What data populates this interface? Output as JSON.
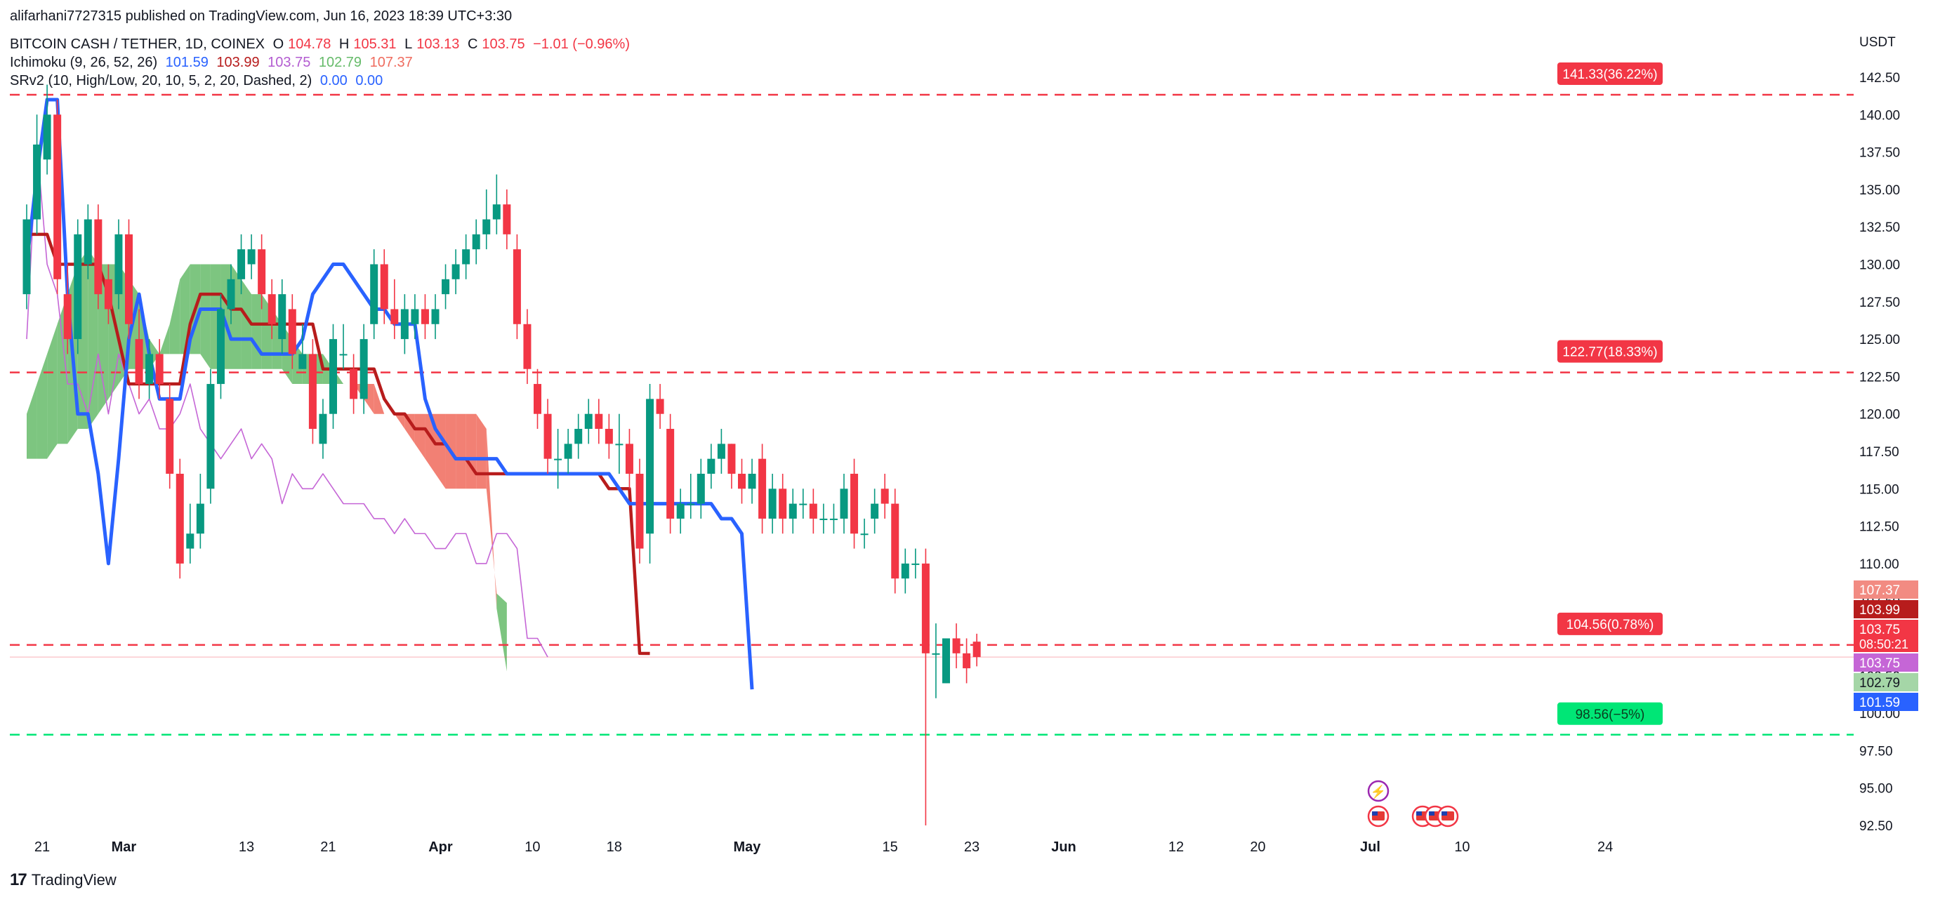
{
  "header": {
    "published": "alifarhani7727315 published on TradingView.com, Jun 16, 2023 18:39 UTC+3:30",
    "symbol": "BITCOIN CASH / TETHER, 1D, COINEX",
    "ohlc": {
      "o_label": "O",
      "o": "104.78",
      "h_label": "H",
      "h": "105.31",
      "l_label": "L",
      "l": "103.13",
      "c_label": "C",
      "c": "103.75",
      "change": "−1.01 (−0.96%)"
    },
    "ichimoku": {
      "label": "Ichimoku (9, 26, 52, 26)",
      "v1": "101.59",
      "v2": "103.99",
      "v3": "103.75",
      "v4": "102.79",
      "v5": "107.37"
    },
    "srv2": {
      "label": "SRv2 (10, High/Low, 20, 10, 5, 2, 20, Dashed, 2)",
      "v1": "0.00",
      "v2": "0.00"
    }
  },
  "footer": {
    "brand": "TradingView"
  },
  "colors": {
    "up": "#089981",
    "down": "#f23645",
    "tenkan": "#2962ff",
    "kijun": "#b71c1c",
    "chikou": "#c566d6",
    "cloud_bull": "#66bb6a",
    "cloud_bear": "#f06a5c",
    "sr_red": "#f23645",
    "sr_green": "#00e676"
  },
  "chart_data": {
    "type": "candlestick",
    "currency": "USDT",
    "ylim": [
      92.5,
      142.5
    ],
    "y_ticks": [
      "142.50",
      "140.00",
      "137.50",
      "135.00",
      "132.50",
      "130.00",
      "127.50",
      "125.00",
      "122.50",
      "120.00",
      "117.50",
      "115.00",
      "112.50",
      "110.00",
      "107.50",
      "105.00",
      "102.50",
      "100.00",
      "97.50",
      "95.00",
      "92.50"
    ],
    "x_ticks": [
      {
        "label": "21",
        "date": "2023-02-21"
      },
      {
        "label": "Mar",
        "date": "2023-03-01"
      },
      {
        "label": "13",
        "date": "2023-03-13"
      },
      {
        "label": "21",
        "date": "2023-03-21"
      },
      {
        "label": "Apr",
        "date": "2023-04-01"
      },
      {
        "label": "10",
        "date": "2023-04-10"
      },
      {
        "label": "18",
        "date": "2023-04-18"
      },
      {
        "label": "May",
        "date": "2023-05-01"
      },
      {
        "label": "15",
        "date": "2023-05-15"
      },
      {
        "label": "23",
        "date": "2023-05-23"
      },
      {
        "label": "Jun",
        "date": "2023-06-01"
      },
      {
        "label": "12",
        "date": "2023-06-12"
      },
      {
        "label": "20",
        "date": "2023-06-20"
      },
      {
        "label": "Jul",
        "date": "2023-07-01"
      },
      {
        "label": "10",
        "date": "2023-07-10"
      },
      {
        "label": "24",
        "date": "2023-07-24"
      }
    ],
    "candles": {
      "start_date": "2023-02-21",
      "close": [
        133,
        138,
        140,
        129,
        125,
        132,
        133,
        128,
        127,
        132,
        126,
        122,
        124,
        122,
        116,
        110,
        112,
        114,
        122,
        127,
        129,
        131,
        131,
        128,
        126,
        128,
        124,
        124,
        119,
        120,
        125,
        124,
        121,
        125,
        130,
        127,
        126,
        127,
        127,
        126,
        127,
        129,
        130,
        131,
        132,
        133,
        134,
        132,
        126,
        123,
        120,
        117,
        117,
        118,
        119,
        120,
        119,
        118,
        118,
        116,
        111,
        121,
        120,
        113,
        114,
        114,
        116,
        117,
        118,
        116,
        115,
        116,
        113,
        115,
        113,
        114,
        114,
        113,
        113,
        113,
        115,
        112,
        112,
        114,
        114,
        109,
        110,
        110,
        104,
        104,
        105,
        104,
        103,
        103.75
      ],
      "open": [
        128,
        133,
        137,
        140,
        128,
        125,
        130,
        133,
        129,
        128,
        132,
        125,
        122,
        124,
        121,
        116,
        111,
        112,
        115,
        122,
        127,
        129,
        130,
        131,
        128,
        125,
        127,
        123,
        124,
        118,
        120,
        124,
        123,
        121,
        126,
        130,
        127,
        125,
        126,
        127,
        126,
        128,
        129,
        130,
        131,
        132,
        133,
        134,
        131,
        126,
        122,
        120,
        117,
        117,
        118,
        119,
        120,
        119,
        118,
        118,
        116,
        112,
        121,
        119,
        113,
        114,
        114,
        116,
        117,
        118,
        116,
        115,
        117,
        113,
        115,
        113,
        114,
        114,
        113,
        113,
        113,
        116,
        112,
        113,
        115,
        114,
        109,
        110,
        110,
        104,
        102,
        105,
        104,
        104.78
      ],
      "high": [
        134,
        140,
        142,
        141,
        130,
        133,
        134,
        134,
        130,
        133,
        133,
        127,
        125,
        125,
        122,
        117,
        114,
        116,
        123,
        128,
        130,
        132,
        132,
        132,
        129,
        129,
        128,
        126,
        125,
        121,
        126,
        126,
        124,
        126,
        131,
        131,
        129,
        128,
        128,
        128,
        128,
        130,
        131,
        132,
        133,
        135,
        136,
        135,
        132,
        127,
        123,
        121,
        119,
        119,
        120,
        121,
        121,
        120,
        120,
        119,
        117,
        122,
        122,
        120,
        115,
        116,
        117,
        118,
        119,
        118,
        117,
        117,
        118,
        116,
        116,
        115,
        115,
        115,
        114,
        114,
        116,
        117,
        113,
        115,
        116,
        115,
        111,
        111,
        111,
        106,
        105,
        106,
        105,
        105.31
      ],
      "low": [
        127,
        132,
        136,
        128,
        124,
        124,
        129,
        127,
        126,
        127,
        125,
        121,
        121,
        121,
        115,
        109,
        110,
        111,
        114,
        121,
        126,
        128,
        129,
        127,
        125,
        124,
        123,
        123,
        118,
        117,
        119,
        123,
        120,
        120,
        125,
        126,
        125,
        124,
        125,
        125,
        125,
        127,
        128,
        129,
        130,
        131,
        132,
        131,
        125,
        122,
        119,
        116,
        115,
        116,
        117,
        118,
        118,
        117,
        116,
        115,
        110,
        110,
        119,
        112,
        112,
        113,
        113,
        115,
        116,
        115,
        114,
        114,
        112,
        112,
        112,
        112,
        113,
        112,
        112,
        112,
        112,
        111,
        111,
        112,
        113,
        108,
        108,
        109,
        92.5,
        101,
        102,
        103,
        102,
        103.13
      ]
    },
    "tenkan": [
      130,
      136,
      141,
      141,
      128,
      120,
      120,
      116,
      110,
      117,
      125,
      128,
      124,
      121,
      121,
      121,
      125,
      127,
      127,
      127,
      125,
      125,
      125,
      124,
      124,
      124,
      124,
      125,
      128,
      129,
      130,
      130,
      129,
      128,
      127,
      127,
      126,
      126,
      126,
      121,
      119,
      118,
      117,
      117,
      117,
      117,
      117,
      116,
      116,
      116,
      116,
      116,
      116,
      116,
      116,
      116,
      116,
      116,
      115,
      114,
      114,
      114,
      114,
      114,
      114,
      114,
      114,
      114,
      113,
      113,
      112,
      101.59
    ],
    "kijun": [
      132,
      132,
      132,
      130,
      130,
      130,
      130,
      130,
      128,
      125,
      122,
      122,
      122,
      122,
      122,
      122,
      126,
      128,
      128,
      128,
      127,
      127,
      126,
      126,
      126,
      126,
      126,
      126,
      126,
      123,
      123,
      123,
      123,
      123,
      123,
      121,
      120,
      120,
      119,
      119,
      118,
      118,
      117,
      117,
      116,
      116,
      116,
      116,
      116,
      116,
      116,
      116,
      116,
      116,
      116,
      116,
      116,
      115,
      115,
      115,
      104,
      103.99
    ],
    "senkou_a": [
      120,
      122,
      124,
      126,
      128,
      130,
      131,
      130,
      130,
      130,
      129,
      128,
      125,
      124,
      126,
      129,
      130,
      130,
      130,
      130,
      130,
      129,
      128,
      128,
      127,
      126,
      125,
      124,
      124,
      124,
      123,
      122,
      122,
      121,
      120,
      120,
      120,
      119,
      118,
      117,
      116,
      115,
      115,
      115,
      115,
      115,
      108,
      107.37
    ],
    "senkou_b": [
      117,
      117,
      117,
      118,
      118,
      119,
      119,
      120,
      121,
      122,
      123,
      123,
      123,
      124,
      124,
      124,
      124,
      124,
      123,
      123,
      123,
      123,
      123,
      123,
      123,
      123,
      122,
      122,
      122,
      122,
      122,
      122,
      122,
      122,
      122,
      120,
      120,
      120,
      120,
      120,
      120,
      120,
      120,
      120,
      120,
      119,
      107,
      102.79
    ],
    "chikou": [
      125,
      138,
      130,
      128,
      122,
      122,
      120,
      124,
      120,
      124,
      122,
      120,
      121,
      119,
      119,
      120,
      122,
      119,
      118,
      117,
      118,
      119,
      117,
      118,
      117,
      114,
      116,
      115,
      115,
      116,
      115,
      114,
      114,
      114,
      113,
      113,
      112,
      113,
      112,
      112,
      111,
      111,
      112,
      112,
      110,
      110,
      112,
      112,
      111,
      105,
      105,
      103.75
    ],
    "sr_levels": [
      {
        "price": 141.33,
        "label": "141.33(36.22%)",
        "color": "red"
      },
      {
        "price": 122.77,
        "label": "122.77(18.33%)",
        "color": "red"
      },
      {
        "price": 104.56,
        "label": "104.56(0.78%)",
        "color": "red"
      },
      {
        "price": 98.56,
        "label": "98.56(−5%)",
        "color": "green"
      }
    ],
    "price_badges": [
      {
        "value": "107.37",
        "color": "#f28b82",
        "text": "#ffffff"
      },
      {
        "value": "103.99",
        "color": "#b71c1c",
        "text": "#ffffff"
      },
      {
        "value": "103.75",
        "sub": "08:50:21",
        "color": "#f23645",
        "text": "#ffffff"
      },
      {
        "value": "103.75",
        "color": "#c566d6",
        "text": "#ffffff"
      },
      {
        "value": "102.79",
        "color": "#a5d6a7",
        "text": "#131722"
      },
      {
        "value": "101.59",
        "color": "#2962ff",
        "text": "#ffffff"
      }
    ]
  }
}
